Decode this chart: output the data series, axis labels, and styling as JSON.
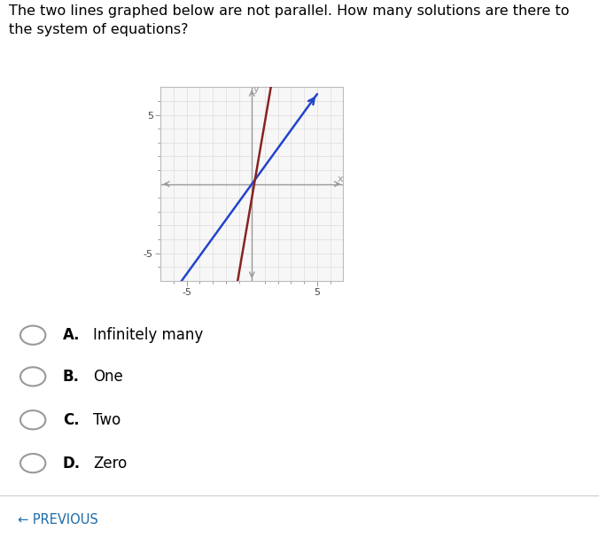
{
  "title_text": "The two lines graphed below are not parallel. How many solutions are there to\nthe system of equations?",
  "title_fontsize": 11.5,
  "title_bg": "#e8e8e8",
  "blue_line": {
    "slope": 1.3,
    "intercept": 0.0,
    "color": "#2244cc",
    "x_start": -6.0,
    "x_end": 5.0
  },
  "red_line": {
    "slope": 5.5,
    "intercept": -1.0,
    "color": "#882222",
    "x_start": -1.1,
    "x_end": 1.5
  },
  "xlim": [
    -7,
    7
  ],
  "ylim": [
    -7,
    7
  ],
  "axis_color": "#999999",
  "grid_color": "#dddddd",
  "plot_bg": "#f7f7f7",
  "choices": [
    {
      "letter": "A",
      "text": "Infinitely many"
    },
    {
      "letter": "B",
      "text": "One"
    },
    {
      "letter": "C",
      "text": "Two"
    },
    {
      "letter": "D",
      "text": "Zero"
    }
  ],
  "choice_fontsize": 12,
  "circle_color": "#999999",
  "previous_text": "← PREVIOUS",
  "previous_color": "#1a6aaa",
  "separator_color": "#cccccc",
  "page_bg": "#ffffff"
}
